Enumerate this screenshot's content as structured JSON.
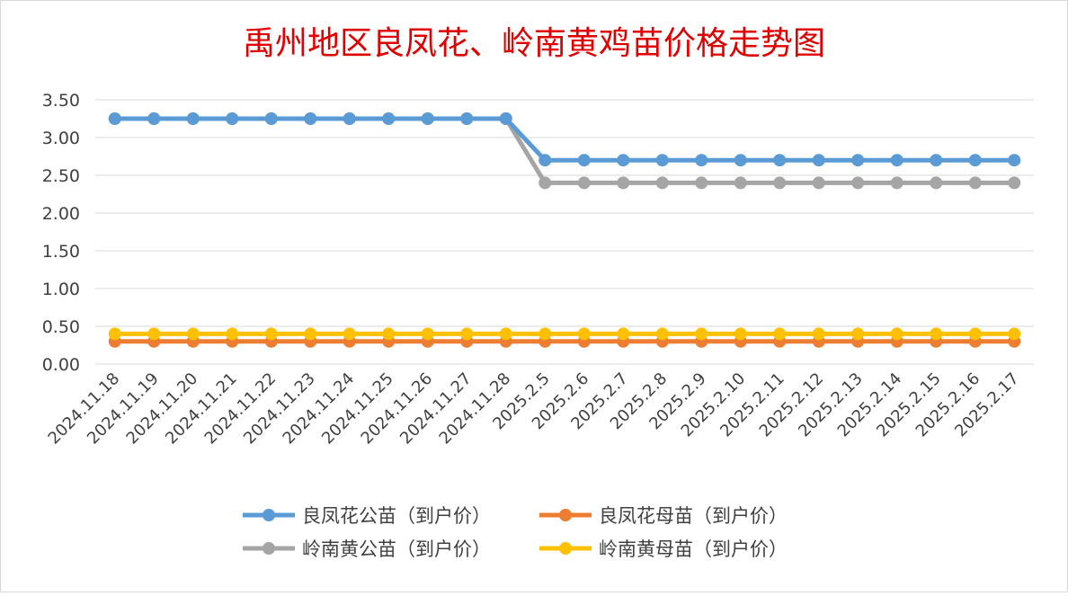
{
  "chart_data": {
    "type": "line",
    "title": "禹州地区良凤花、岭南黄鸡苗价格走势图",
    "xlabel": "",
    "ylabel": "",
    "ylim": [
      0,
      3.5
    ],
    "y_ticks": [
      "0.00",
      "0.50",
      "1.00",
      "1.50",
      "2.00",
      "2.50",
      "3.00",
      "3.50"
    ],
    "grid": true,
    "legend_position": "bottom",
    "categories": [
      "2024.11.18",
      "2024.11.19",
      "2024.11.20",
      "2024.11.21",
      "2024.11.22",
      "2024.11.23",
      "2024.11.24",
      "2024.11.25",
      "2024.11.26",
      "2024.11.27",
      "2024.11.28",
      "2025.2.5",
      "2025.2.6",
      "2025.2.7",
      "2025.2.8",
      "2025.2.9",
      "2025.2.10",
      "2025.2.11",
      "2025.2.12",
      "2025.2.13",
      "2025.2.14",
      "2025.2.15",
      "2025.2.16",
      "2025.2.17"
    ],
    "series": [
      {
        "name": "良凤花公苗（到户价）",
        "color": "#5b9bd5",
        "values": [
          3.25,
          3.25,
          3.25,
          3.25,
          3.25,
          3.25,
          3.25,
          3.25,
          3.25,
          3.25,
          3.25,
          2.7,
          2.7,
          2.7,
          2.7,
          2.7,
          2.7,
          2.7,
          2.7,
          2.7,
          2.7,
          2.7,
          2.7,
          2.7
        ]
      },
      {
        "name": "良凤花母苗（到户价）",
        "color": "#ed7d31",
        "values": [
          0.3,
          0.3,
          0.3,
          0.3,
          0.3,
          0.3,
          0.3,
          0.3,
          0.3,
          0.3,
          0.3,
          0.3,
          0.3,
          0.3,
          0.3,
          0.3,
          0.3,
          0.3,
          0.3,
          0.3,
          0.3,
          0.3,
          0.3,
          0.3
        ]
      },
      {
        "name": "岭南黄公苗（到户价）",
        "color": "#a5a5a5",
        "values": [
          3.25,
          3.25,
          3.25,
          3.25,
          3.25,
          3.25,
          3.25,
          3.25,
          3.25,
          3.25,
          3.25,
          2.4,
          2.4,
          2.4,
          2.4,
          2.4,
          2.4,
          2.4,
          2.4,
          2.4,
          2.4,
          2.4,
          2.4,
          2.4
        ]
      },
      {
        "name": "岭南黄母苗（到户价）",
        "color": "#ffc000",
        "values": [
          0.4,
          0.4,
          0.4,
          0.4,
          0.4,
          0.4,
          0.4,
          0.4,
          0.4,
          0.4,
          0.4,
          0.4,
          0.4,
          0.4,
          0.4,
          0.4,
          0.4,
          0.4,
          0.4,
          0.4,
          0.4,
          0.4,
          0.4,
          0.4
        ]
      }
    ],
    "title_color": "#e00000"
  }
}
